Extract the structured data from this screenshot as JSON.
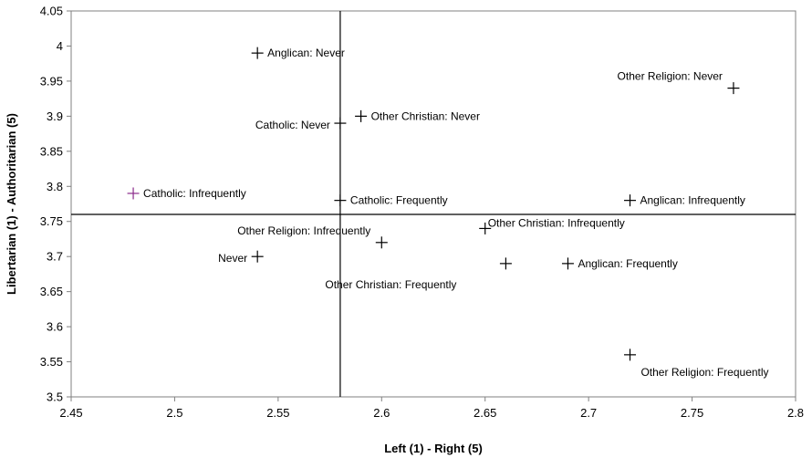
{
  "chart_data": {
    "type": "scatter",
    "title": "",
    "xlabel": "Left (1) - Right (5)",
    "ylabel": "Libertarian (1) - Authoritarian (5)",
    "xlim": [
      2.45,
      2.8
    ],
    "ylim": [
      3.5,
      4.05
    ],
    "x_ticks": [
      "2.45",
      "2.5",
      "2.55",
      "2.6",
      "2.65",
      "2.7",
      "2.75",
      "2.8"
    ],
    "y_ticks": [
      "3.5",
      "3.55",
      "3.6",
      "3.65",
      "3.7",
      "3.75",
      "3.8",
      "3.85",
      "3.9",
      "3.95",
      "4",
      "4.05"
    ],
    "grid": false,
    "legend": "none",
    "reference_lines": {
      "vertical_x": 2.58,
      "horizontal_y": 3.76
    },
    "marker": "cross",
    "colors": {
      "marker_default": "#000000",
      "marker_highlight": "#8b2a8b",
      "axis": "#808080",
      "reference_line": "#000000"
    },
    "points": [
      {
        "label": "Anglican: Never",
        "x": 2.54,
        "y": 3.99,
        "label_side": "right",
        "color": "#000000"
      },
      {
        "label": "Other Religion: Never",
        "x": 2.77,
        "y": 3.94,
        "label_side": "above-left",
        "color": "#000000"
      },
      {
        "label": "Catholic: Never",
        "x": 2.58,
        "y": 3.89,
        "label_side": "left",
        "color": "#000000"
      },
      {
        "label": "Other Christian: Never",
        "x": 2.59,
        "y": 3.9,
        "label_side": "right",
        "color": "#000000"
      },
      {
        "label": "Catholic: Infrequently",
        "x": 2.48,
        "y": 3.79,
        "label_side": "right",
        "color": "#8b2a8b"
      },
      {
        "label": "Catholic: Frequently",
        "x": 2.58,
        "y": 3.78,
        "label_side": "right",
        "color": "#000000"
      },
      {
        "label": "Anglican: Infrequently",
        "x": 2.72,
        "y": 3.78,
        "label_side": "right",
        "color": "#000000"
      },
      {
        "label": "Other Religion: Infrequently",
        "x": 2.6,
        "y": 3.72,
        "label_side": "above-left",
        "color": "#000000"
      },
      {
        "label": "Other Christian: Infrequently",
        "x": 2.65,
        "y": 3.74,
        "label_side": "right-high",
        "color": "#000000"
      },
      {
        "label": "Never",
        "x": 2.54,
        "y": 3.7,
        "label_side": "left",
        "color": "#000000"
      },
      {
        "label": "Other Christian: Frequently",
        "x": 2.66,
        "y": 3.69,
        "label_side": "below-left",
        "color": "#000000"
      },
      {
        "label": "Anglican: Frequently",
        "x": 2.69,
        "y": 3.69,
        "label_side": "right",
        "color": "#000000"
      },
      {
        "label": "Other Religion: Frequently",
        "x": 2.72,
        "y": 3.56,
        "label_side": "below",
        "color": "#000000"
      }
    ]
  }
}
